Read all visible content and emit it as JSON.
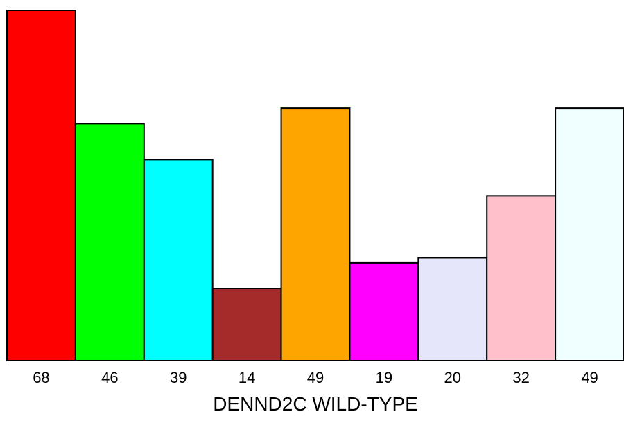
{
  "chart_data": {
    "type": "bar",
    "title": "",
    "xlabel": "DENND2C WILD-TYPE",
    "ylabel": "",
    "categories": [
      "68",
      "46",
      "39",
      "14",
      "49",
      "19",
      "20",
      "32",
      "49"
    ],
    "values": [
      68,
      46,
      39,
      14,
      49,
      19,
      20,
      32,
      49
    ],
    "colors": [
      "#ff0000",
      "#00ff00",
      "#00ffff",
      "#a52a2a",
      "#ffa500",
      "#ff00ff",
      "#e6e6fa",
      "#ffc0cb",
      "#f0ffff"
    ],
    "ylim": [
      0,
      68
    ],
    "grid": false,
    "legend": "none"
  }
}
